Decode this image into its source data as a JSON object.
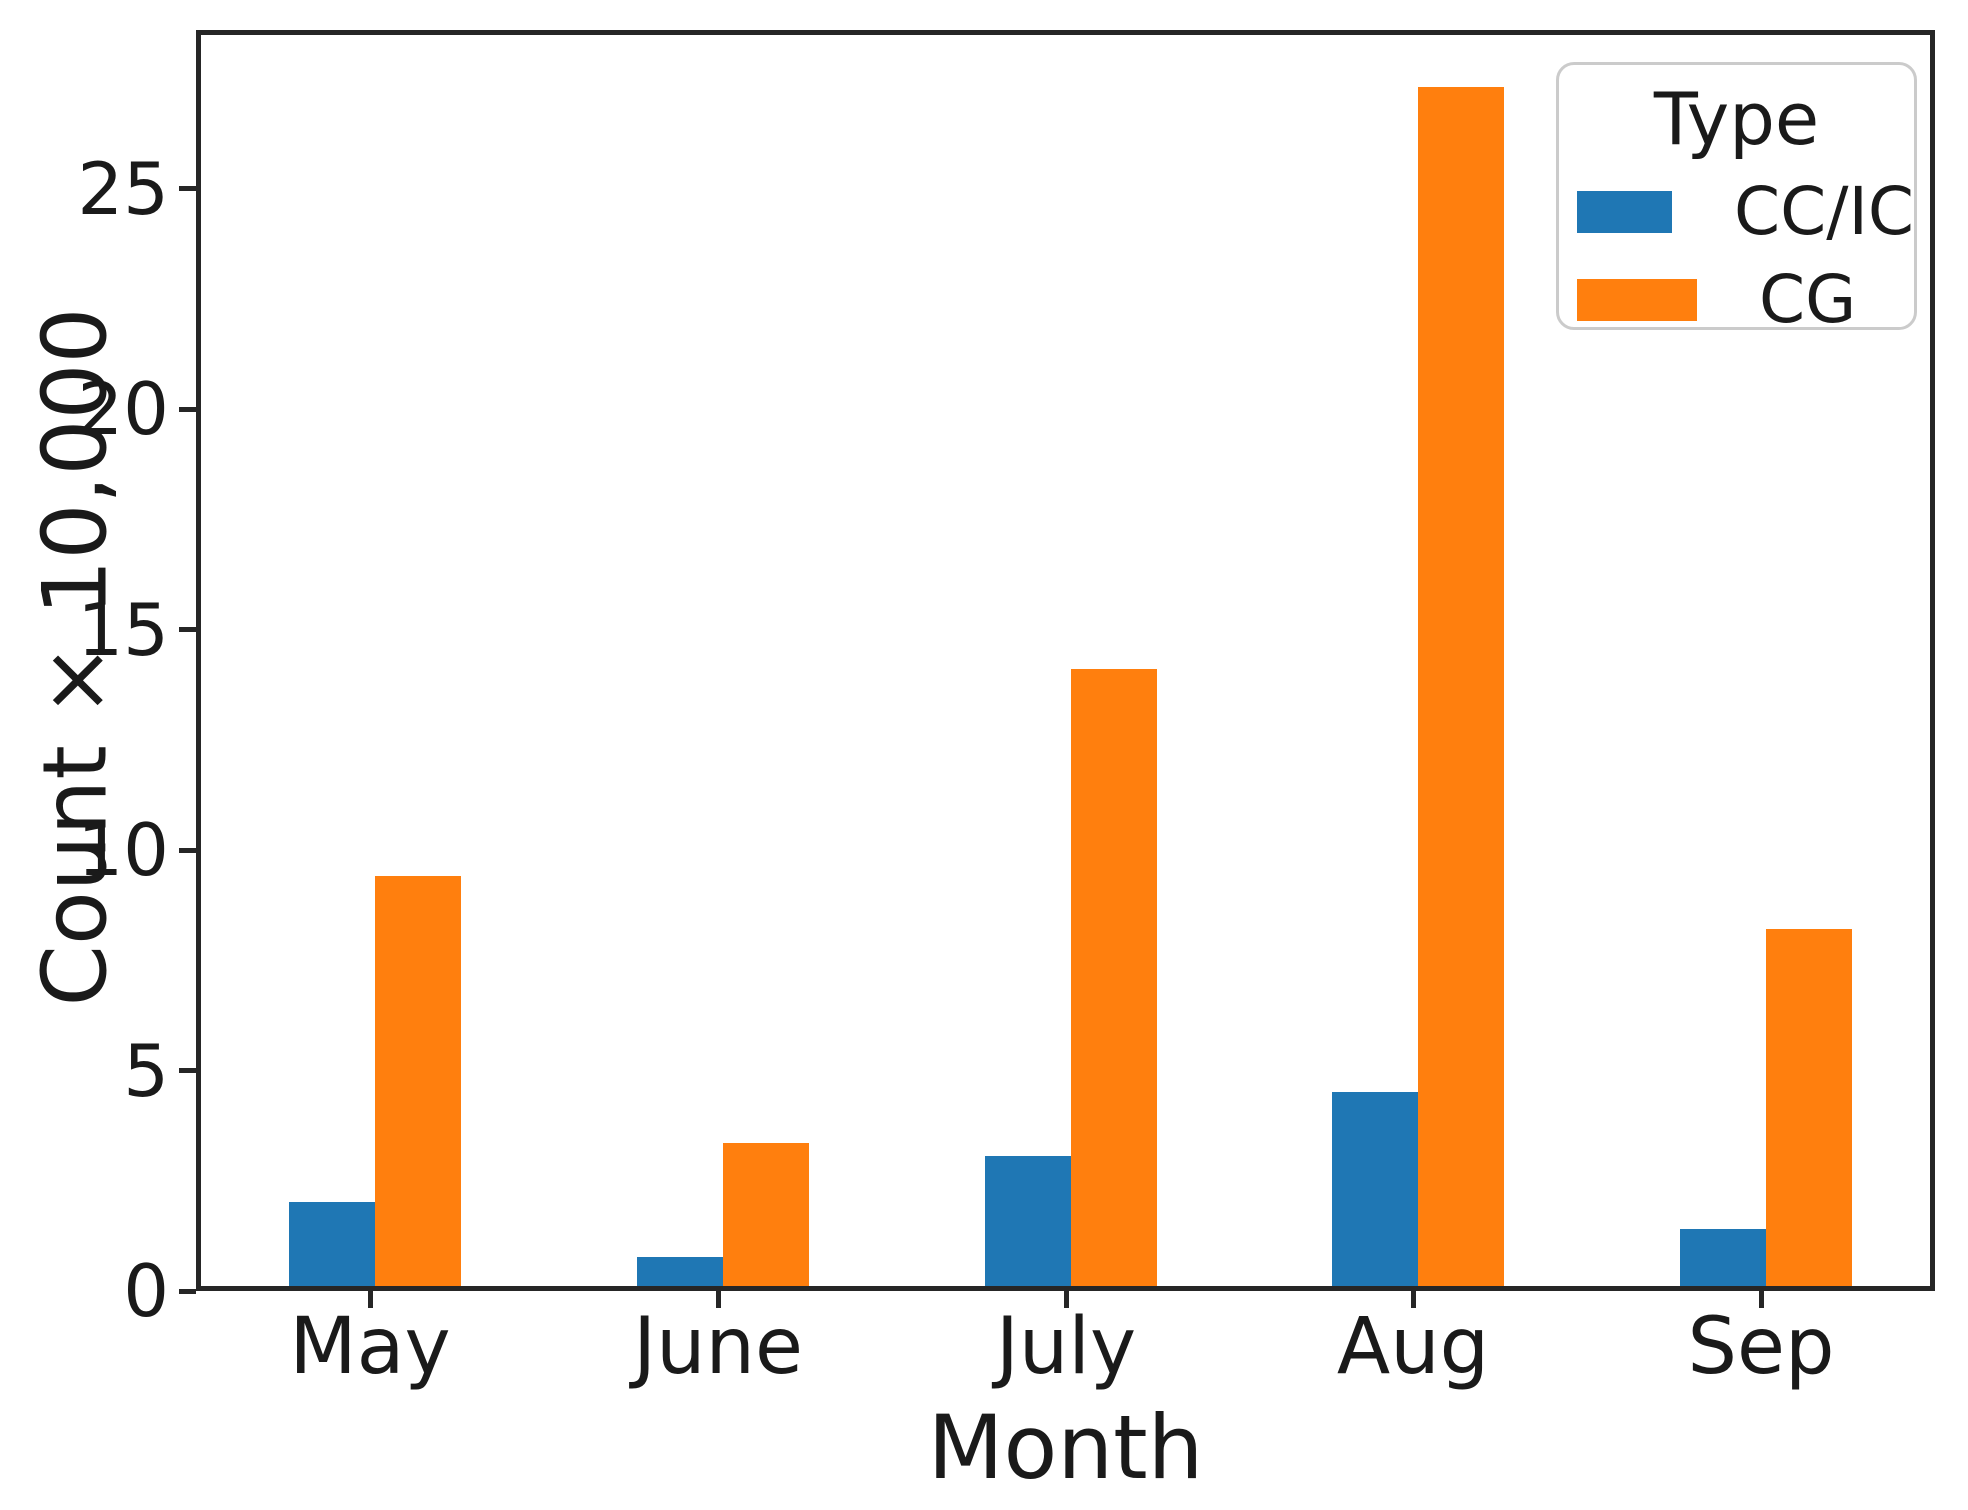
{
  "chart_data": {
    "type": "bar",
    "title": "",
    "xlabel": "Month",
    "ylabel": "Count × 10,000",
    "categories": [
      "May",
      "June",
      "July",
      "Aug",
      "Sep"
    ],
    "series": [
      {
        "name": "CC/IC",
        "color": "#1f77b4",
        "values": [
          1.9,
          0.65,
          2.95,
          4.4,
          1.3
        ]
      },
      {
        "name": "CG",
        "color": "#ff7f0e",
        "values": [
          9.3,
          3.25,
          14.0,
          27.2,
          8.1
        ]
      }
    ],
    "ylim": [
      0,
      28.6
    ],
    "yticks": [
      0,
      5,
      10,
      15,
      20,
      25
    ],
    "grid": false,
    "legend": {
      "title": "Type",
      "position": "upper right"
    }
  },
  "colors": {
    "series_blue": "#1f77b4",
    "series_orange": "#ff7f0e",
    "spine": "#262626",
    "text": "#1a1a1a",
    "legend_border": "#cbcbcb",
    "background": "#ffffff"
  }
}
